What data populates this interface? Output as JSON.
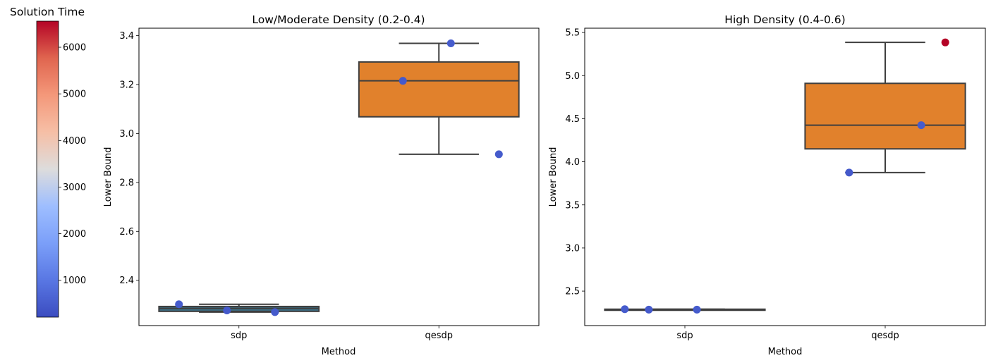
{
  "colorbar": {
    "title": "Solution Time",
    "range": [
      210,
      6560
    ],
    "ticks": [
      1000,
      2000,
      3000,
      4000,
      5000,
      6000
    ],
    "tick_labels": [
      "1000",
      "2000",
      "3000",
      "4000",
      "5000",
      "6000"
    ],
    "colormap": "coolwarm"
  },
  "chart_data": [
    {
      "type": "box",
      "title": "Low/Moderate Density (0.2-0.4)",
      "xlabel": "Method",
      "ylabel": "Lower Bound",
      "categories": [
        "sdp",
        "qesdp"
      ],
      "ylim": [
        2.215,
        3.43
      ],
      "yticks": [
        2.4,
        2.6,
        2.8,
        3.0,
        3.2,
        3.4
      ],
      "ytick_labels": [
        "2.4",
        "2.6",
        "2.8",
        "3.0",
        "3.2",
        "3.4"
      ],
      "boxes": [
        {
          "category": "sdp",
          "whislo": 2.27,
          "q1": 2.273,
          "median": 2.285,
          "q3": 2.293,
          "whishi": 2.302,
          "color": "#3c6e84"
        },
        {
          "category": "qesdp",
          "whislo": 2.915,
          "q1": 3.068,
          "median": 3.215,
          "q3": 3.292,
          "whishi": 3.368,
          "color": "#e1812c"
        }
      ],
      "points": [
        {
          "category": "sdp",
          "offset": -0.3,
          "y": 2.302,
          "time": 500
        },
        {
          "category": "sdp",
          "offset": -0.06,
          "y": 2.277,
          "time": 450
        },
        {
          "category": "sdp",
          "offset": 0.18,
          "y": 2.27,
          "time": 480
        },
        {
          "category": "qesdp",
          "offset": -0.18,
          "y": 3.215,
          "time": 450
        },
        {
          "category": "qesdp",
          "offset": 0.06,
          "y": 3.368,
          "time": 500
        },
        {
          "category": "qesdp",
          "offset": 0.3,
          "y": 2.915,
          "time": 480
        }
      ]
    },
    {
      "type": "box",
      "title": "High Density (0.4-0.6)",
      "xlabel": "Method",
      "ylabel": "Lower Bound",
      "categories": [
        "sdp",
        "qesdp"
      ],
      "ylim": [
        2.1,
        5.55
      ],
      "yticks": [
        2.5,
        3.0,
        3.5,
        4.0,
        4.5,
        5.0,
        5.5
      ],
      "ytick_labels": [
        "2.5",
        "3.0",
        "3.5",
        "4.0",
        "4.5",
        "5.0",
        "5.5"
      ],
      "boxes": [
        {
          "category": "sdp",
          "whislo": 2.28,
          "q1": 2.28,
          "median": 2.285,
          "q3": 2.29,
          "whishi": 2.29,
          "color": "#3c6e84"
        },
        {
          "category": "qesdp",
          "whislo": 3.875,
          "q1": 4.15,
          "median": 4.425,
          "q3": 4.91,
          "whishi": 5.385,
          "color": "#e1812c"
        }
      ],
      "points": [
        {
          "category": "sdp",
          "offset": -0.3,
          "y": 2.29,
          "time": 500
        },
        {
          "category": "sdp",
          "offset": -0.18,
          "y": 2.285,
          "time": 450
        },
        {
          "category": "sdp",
          "offset": 0.06,
          "y": 2.285,
          "time": 480
        },
        {
          "category": "qesdp",
          "offset": -0.18,
          "y": 3.875,
          "time": 450
        },
        {
          "category": "qesdp",
          "offset": 0.18,
          "y": 4.425,
          "time": 500
        },
        {
          "category": "qesdp",
          "offset": 0.3,
          "y": 5.385,
          "time": 6560
        }
      ]
    }
  ]
}
